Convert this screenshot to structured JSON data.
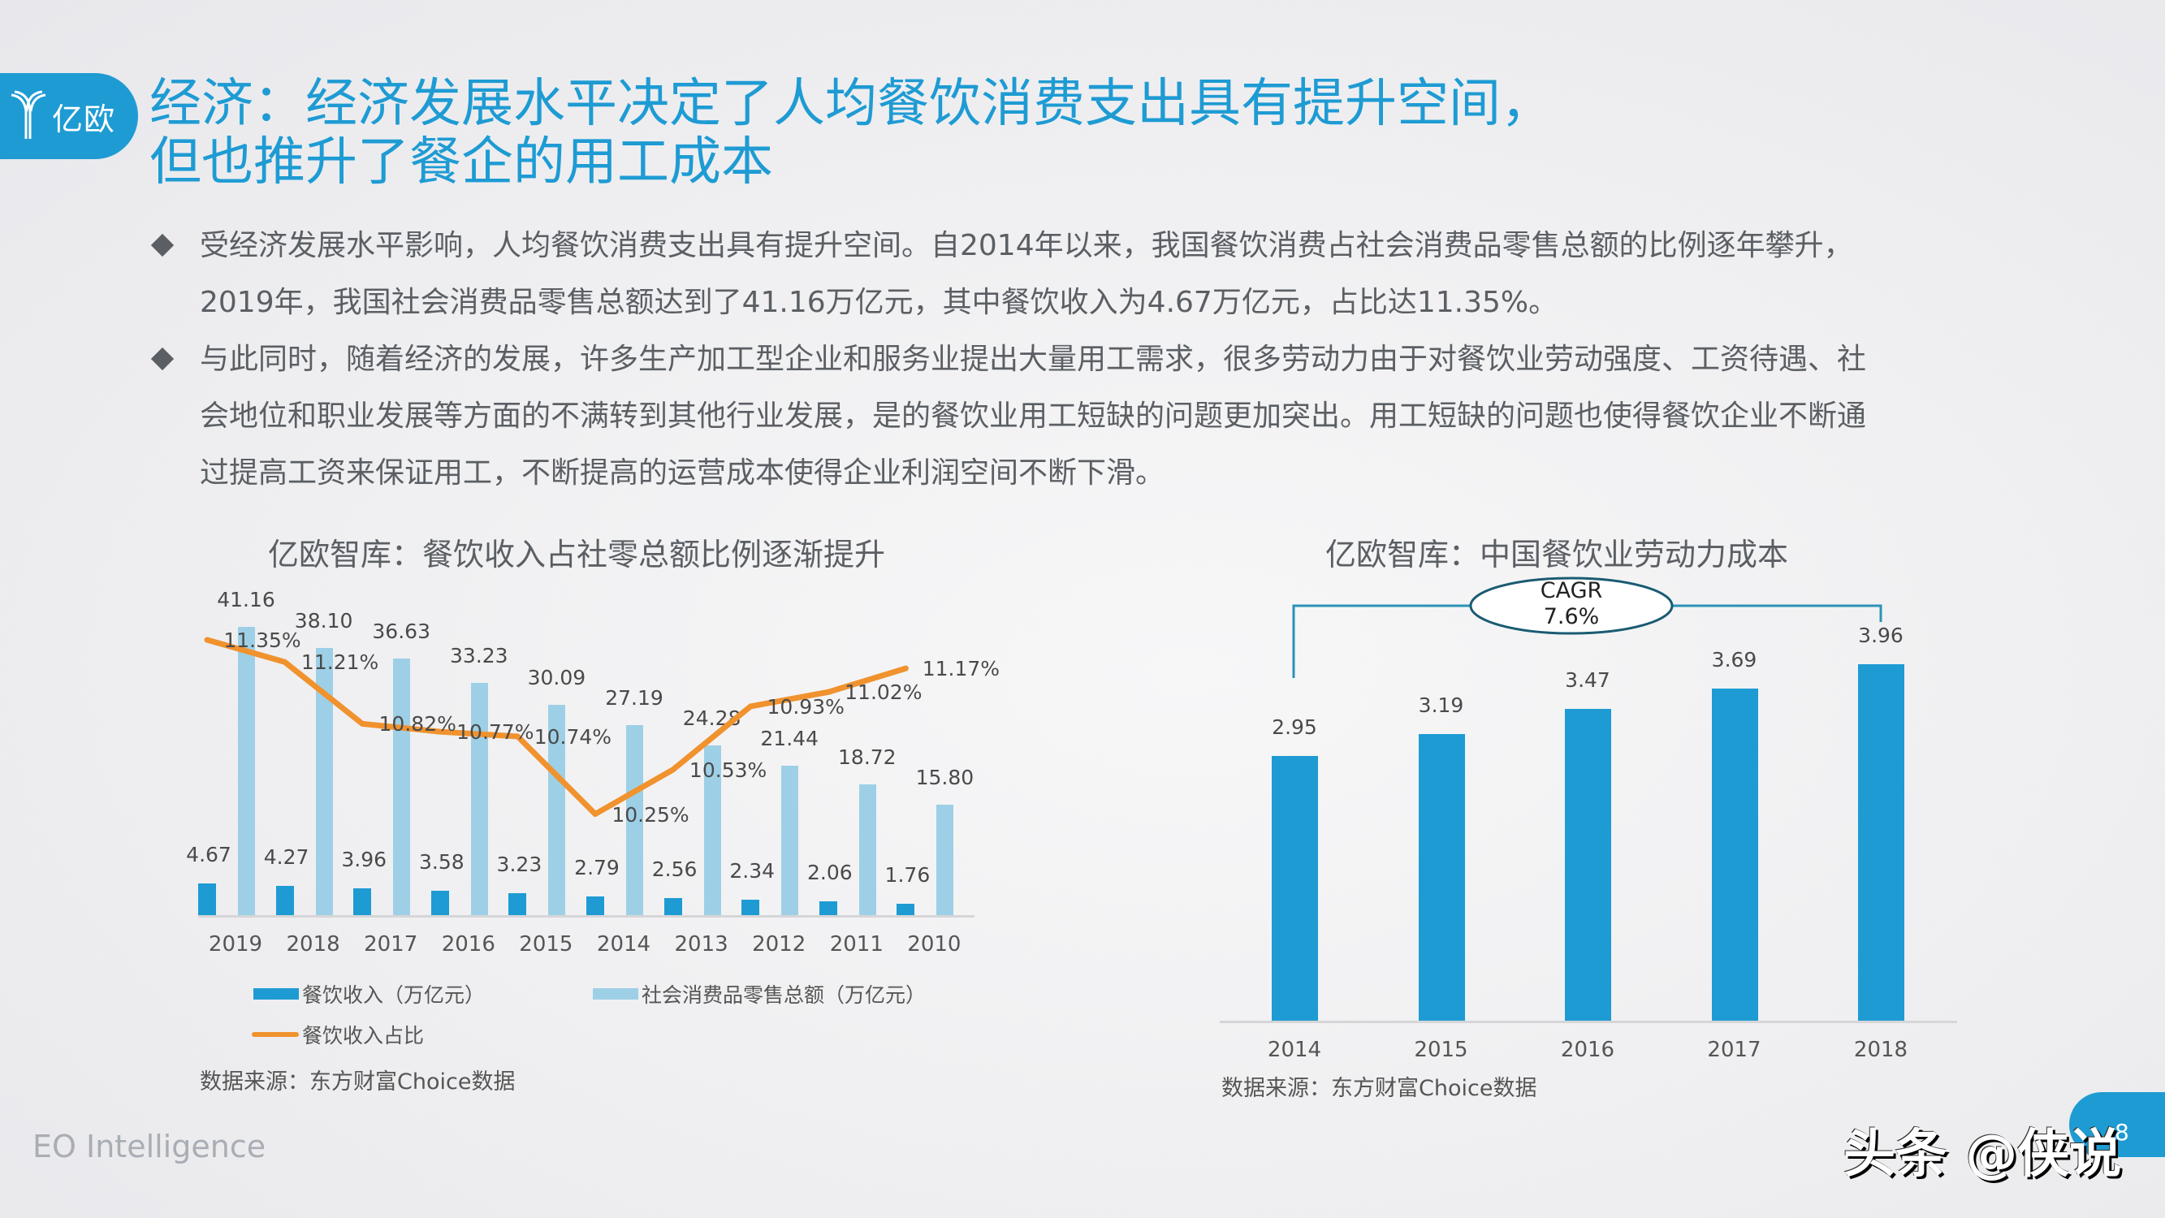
{
  "header": {
    "logo_text": "亿欧",
    "title_line1": "经济：经济发展水平决定了人均餐饮消费支出具有提升空间，",
    "title_line2": "但也推升了餐企的用工成本"
  },
  "bullets": [
    {
      "line1": "受经济发展水平影响，人均餐饮消费支出具有提升空间。自2014年以来，我国餐饮消费占社会消费品零售总额的比例逐年攀升，",
      "line2": "2019年，我国社会消费品零售总额达到了41.16万亿元，其中餐饮收入为4.67万亿元，占比达11.35%。"
    },
    {
      "line1": "与此同时，随着经济的发展，许多生产加工型企业和服务业提出大量用工需求，很多劳动力由于对餐饮业劳动强度、工资待遇、社",
      "line2": "会地位和职业发展等方面的不满转到其他行业发展，是的餐饮业用工短缺的问题更加突出。用工短缺的问题也使得餐饮企业不断通",
      "line3": "过提高工资来保证用工，不断提高的运营成本使得企业利润空间不断下滑。"
    }
  ],
  "colors": {
    "brand": "#1e9bd3",
    "dark_bar": "#1e9bd3",
    "light_bar": "#9dd0e6",
    "line": "#f0922e"
  },
  "chart_data": [
    {
      "type": "bar",
      "title": "亿欧智库：餐饮收入占社零总额比例逐渐提升",
      "categories": [
        "2019",
        "2018",
        "2017",
        "2016",
        "2015",
        "2014",
        "2013",
        "2012",
        "2011",
        "2010"
      ],
      "series": [
        {
          "name": "餐饮收入（万亿元）",
          "type": "bar",
          "values": [
            4.67,
            4.27,
            3.96,
            3.58,
            3.23,
            2.79,
            2.56,
            2.34,
            2.06,
            1.76
          ]
        },
        {
          "name": "社会消费品零售总额（万亿元）",
          "type": "bar",
          "values": [
            41.16,
            38.1,
            36.63,
            33.23,
            30.09,
            27.19,
            24.28,
            21.44,
            18.72,
            15.8
          ]
        },
        {
          "name": "餐饮收入占比",
          "type": "line",
          "values": [
            11.35,
            11.21,
            10.82,
            10.77,
            10.74,
            10.25,
            10.53,
            10.93,
            11.02,
            11.17
          ],
          "labels": [
            "11.35%",
            "11.21%",
            "10.82%",
            "10.77%",
            "10.74%",
            "10.25%",
            "10.53%",
            "10.93%",
            "11.02%",
            "11.17%"
          ]
        }
      ],
      "legend": [
        "餐饮收入（万亿元）",
        "社会消费品零售总额（万亿元）",
        "餐饮收入占比"
      ],
      "legend_position": "bottom",
      "grid": false,
      "source": "数据来源：东方财富Choice数据"
    },
    {
      "type": "bar",
      "title": "亿欧智库：中国餐饮业劳动力成本",
      "categories": [
        "2014",
        "2015",
        "2016",
        "2017",
        "2018"
      ],
      "values": [
        2.95,
        3.19,
        3.47,
        3.69,
        3.96
      ],
      "annotation": {
        "label": "CAGR",
        "value": "7.6%"
      },
      "grid": false,
      "source": "数据来源：东方财富Choice数据"
    }
  ],
  "footer": {
    "brand": "EO Intelligence",
    "page_number": "8",
    "watermark": "头条 @侠说"
  }
}
